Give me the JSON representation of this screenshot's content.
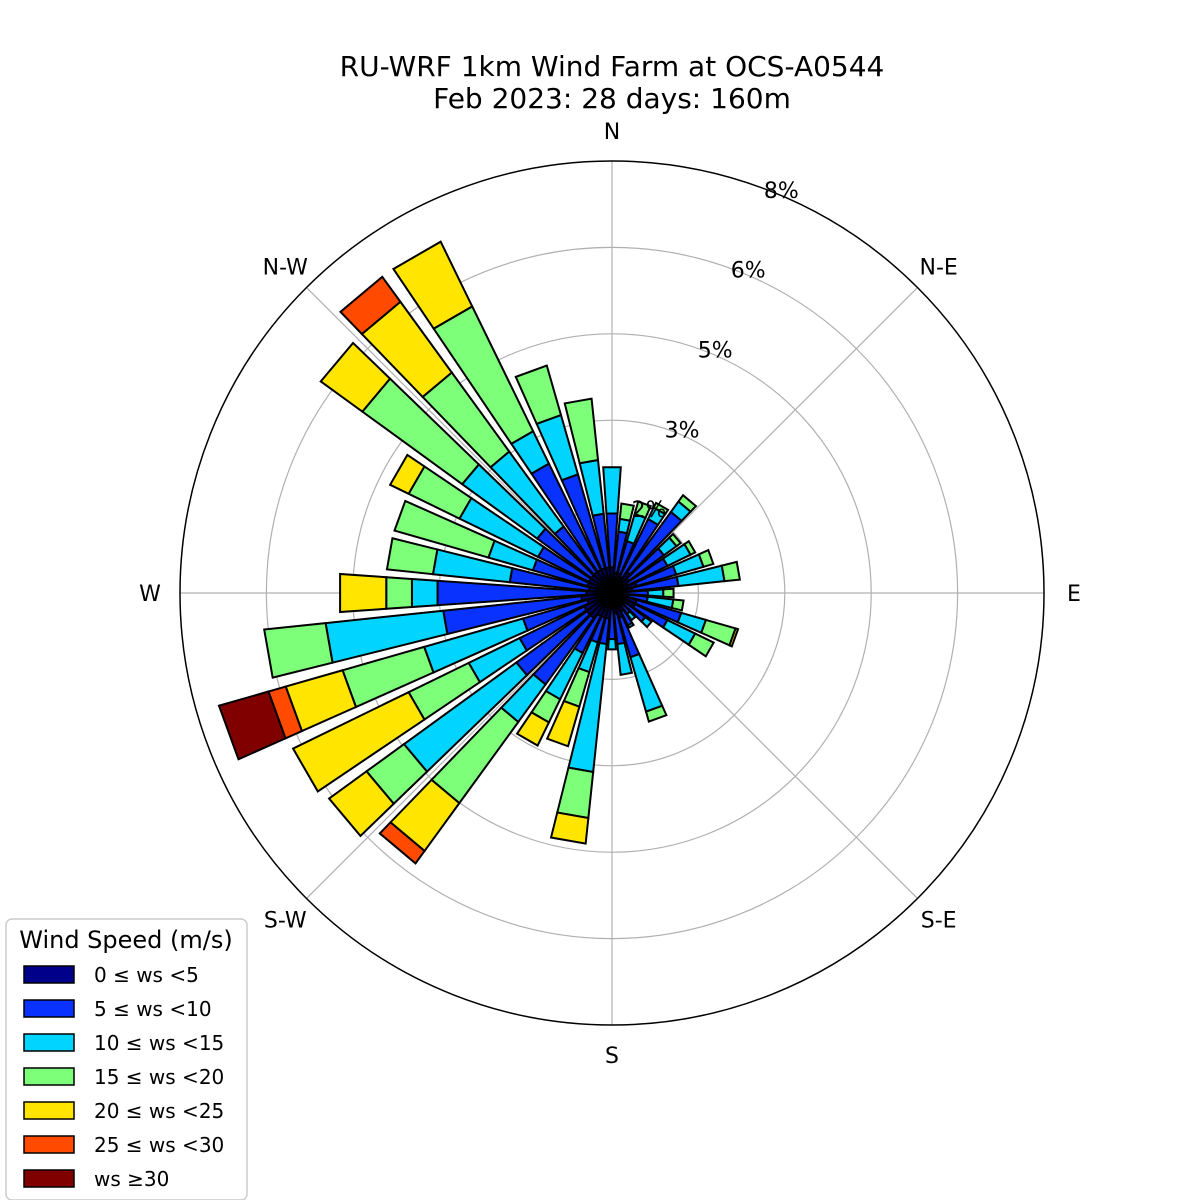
{
  "chart_data": {
    "type": "windrose",
    "title": "RU-WRF 1km Wind Farm at OCS-A0544",
    "subtitle": "Feb 2023: 28 days: 160m",
    "direction_labels": [
      "N",
      "N-E",
      "E",
      "S-E",
      "S",
      "S-W",
      "W",
      "N-W"
    ],
    "radial_tick_labels": [
      "2%",
      "3%",
      "5%",
      "6%",
      "8%"
    ],
    "radial_max_percent": 8.4,
    "grid": true,
    "legend": {
      "title": "Wind Speed (m/s)",
      "placement": "bottom-left",
      "bins": [
        {
          "label": "0 ≤  ws <5",
          "color": "#00008b"
        },
        {
          "label": "5 ≤  ws <10",
          "color": "#0a32ff"
        },
        {
          "label": "10 ≤  ws <15",
          "color": "#00d4ff"
        },
        {
          "label": "15 ≤  ws <20",
          "color": "#7dff7a"
        },
        {
          "label": "20 ≤  ws <25",
          "color": "#ffe500"
        },
        {
          "label": "25 ≤  ws <30",
          "color": "#ff4a00"
        },
        {
          "label": "ws  ≥30",
          "color": "#800000"
        }
      ]
    },
    "sector_width_deg": 10,
    "sectors": [
      {
        "direction_deg": 0,
        "cumulative_percent": [
          0.5,
          1.55,
          2.45
        ]
      },
      {
        "direction_deg": 10,
        "cumulative_percent": [
          0.4,
          1.2,
          1.45,
          1.75
        ]
      },
      {
        "direction_deg": 20,
        "cumulative_percent": [
          0.4,
          1.05,
          1.6,
          1.85
        ]
      },
      {
        "direction_deg": 30,
        "cumulative_percent": [
          0.35,
          1.6,
          1.85,
          1.95
        ]
      },
      {
        "direction_deg": 40,
        "cumulative_percent": [
          0.5,
          1.95,
          2.2,
          2.35
        ]
      },
      {
        "direction_deg": 50,
        "cumulative_percent": [
          0.4,
          1.25,
          1.55,
          1.65
        ]
      },
      {
        "direction_deg": 60,
        "cumulative_percent": [
          0.35,
          1.2,
          1.7,
          1.8
        ]
      },
      {
        "direction_deg": 70,
        "cumulative_percent": [
          0.5,
          1.3,
          1.85,
          2.05
        ]
      },
      {
        "direction_deg": 80,
        "cumulative_percent": [
          0.4,
          1.3,
          2.2,
          2.5
        ]
      },
      {
        "direction_deg": 90,
        "cumulative_percent": [
          0.3,
          0.7,
          1.0,
          1.2
        ]
      },
      {
        "direction_deg": 100,
        "cumulative_percent": [
          0.3,
          0.7,
          1.2,
          1.4
        ]
      },
      {
        "direction_deg": 110,
        "cumulative_percent": [
          0.5,
          1.4,
          1.9,
          2.5,
          2.55
        ]
      },
      {
        "direction_deg": 120,
        "cumulative_percent": [
          0.5,
          1.2,
          1.8,
          2.2
        ]
      },
      {
        "direction_deg": 130,
        "cumulative_percent": [
          0.3,
          0.8,
          0.95
        ]
      },
      {
        "direction_deg": 140,
        "cumulative_percent": [
          0.2,
          0.5,
          0.65
        ]
      },
      {
        "direction_deg": 150,
        "cumulative_percent": [
          0.4,
          0.7,
          0.75
        ]
      },
      {
        "direction_deg": 160,
        "cumulative_percent": [
          0.5,
          1.3,
          2.4,
          2.6
        ]
      },
      {
        "direction_deg": 170,
        "cumulative_percent": [
          0.4,
          1.0,
          1.6
        ]
      },
      {
        "direction_deg": 180,
        "cumulative_percent": [
          0.3,
          0.9,
          1.1
        ]
      },
      {
        "direction_deg": 190,
        "cumulative_percent": [
          0.5,
          1.0,
          3.5,
          4.4,
          4.9
        ]
      },
      {
        "direction_deg": 200,
        "cumulative_percent": [
          0.5,
          1.0,
          1.6,
          2.3,
          3.1
        ]
      },
      {
        "direction_deg": 210,
        "cumulative_percent": [
          0.5,
          1.3,
          2.3,
          2.8,
          3.3
        ]
      },
      {
        "direction_deg": 220,
        "cumulative_percent": [
          0.6,
          2.2,
          3.1,
          5.05,
          6.2,
          6.5
        ]
      },
      {
        "direction_deg": 230,
        "cumulative_percent": [
          0.6,
          2.3,
          5.0,
          5.9,
          6.8
        ]
      },
      {
        "direction_deg": 240,
        "cumulative_percent": [
          0.6,
          2.0,
          3.1,
          4.4,
          6.9
        ]
      },
      {
        "direction_deg": 250,
        "cumulative_percent": [
          0.5,
          1.8,
          3.8,
          5.45,
          6.6,
          6.95,
          7.95
        ]
      },
      {
        "direction_deg": 260,
        "cumulative_percent": [
          0.6,
          3.3,
          5.6,
          6.8
        ]
      },
      {
        "direction_deg": 270,
        "cumulative_percent": [
          0.5,
          3.4,
          3.9,
          4.4,
          5.3
        ]
      },
      {
        "direction_deg": 280,
        "cumulative_percent": [
          0.45,
          2.0,
          3.5,
          4.4
        ]
      },
      {
        "direction_deg": 290,
        "cumulative_percent": [
          0.5,
          1.6,
          2.5,
          4.4
        ]
      },
      {
        "direction_deg": 300,
        "cumulative_percent": [
          0.5,
          1.6,
          3.3,
          4.4,
          4.8
        ]
      },
      {
        "direction_deg": 310,
        "cumulative_percent": [
          0.5,
          1.8,
          3.6,
          6.0,
          7.0
        ]
      },
      {
        "direction_deg": 320,
        "cumulative_percent": [
          0.5,
          1.6,
          3.4,
          5.3,
          7.0,
          7.6
        ]
      },
      {
        "direction_deg": 330,
        "cumulative_percent": [
          0.5,
          2.8,
          3.5,
          6.2,
          7.6
        ]
      },
      {
        "direction_deg": 340,
        "cumulative_percent": [
          0.5,
          2.4,
          3.6,
          4.6
        ]
      },
      {
        "direction_deg": 350,
        "cumulative_percent": [
          0.5,
          1.55,
          2.6,
          3.8
        ]
      }
    ]
  }
}
